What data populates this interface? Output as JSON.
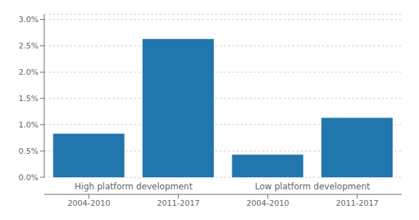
{
  "chart_data": {
    "type": "bar",
    "groups": [
      {
        "label": "High platform development",
        "categories": [
          "2004-2010",
          "2011-2017"
        ],
        "values": [
          0.0083,
          0.0263
        ]
      },
      {
        "label": "Low platform development",
        "categories": [
          "2004-2010",
          "2011-2017"
        ],
        "values": [
          0.0043,
          0.0113
        ]
      }
    ],
    "color": "#2176AE",
    "ylim": [
      0,
      0.031
    ],
    "yticks": [
      {
        "value": 0.0,
        "label": "0.0%"
      },
      {
        "value": 0.005,
        "label": "0.5%"
      },
      {
        "value": 0.01,
        "label": "1.0%"
      },
      {
        "value": 0.015,
        "label": "1.5%"
      },
      {
        "value": 0.02,
        "label": "2.0%"
      },
      {
        "value": 0.025,
        "label": "2.5%"
      },
      {
        "value": 0.03,
        "label": "3.0%"
      }
    ],
    "grid": true
  }
}
